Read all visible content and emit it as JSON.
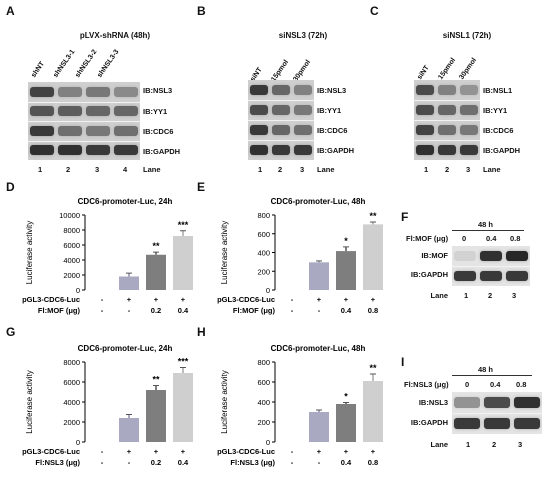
{
  "panel_letters": {
    "A": "A",
    "B": "B",
    "C": "C",
    "D": "D",
    "E": "E",
    "F": "F",
    "G": "G",
    "H": "H",
    "I": "I"
  },
  "blotA": {
    "title": "pLVX-shRNA (48h)",
    "columns": [
      "shNT",
      "shNSL3-1",
      "shNSL3-2",
      "shNSL3-3"
    ],
    "rows": [
      "IB:NSL3",
      "IB:YY1",
      "IB:CDC6",
      "IB:GAPDH"
    ],
    "lanes": [
      "1",
      "2",
      "3",
      "4"
    ],
    "lane_label": "Lane"
  },
  "blotB": {
    "title": "siNSL3 (72h)",
    "columns": [
      "siNT",
      "15pmol",
      "30pmol"
    ],
    "rows": [
      "IB:NSL3",
      "IB:YY1",
      "IB:CDC6",
      "IB:GAPDH"
    ],
    "lanes": [
      "1",
      "2",
      "3"
    ],
    "lane_label": "Lane"
  },
  "blotC": {
    "title": "siNSL1 (72h)",
    "columns": [
      "siNT",
      "15pmol",
      "30pmol"
    ],
    "rows": [
      "IB:NSL1",
      "IB:YY1",
      "IB:CDC6",
      "IB:GAPDH"
    ],
    "lanes": [
      "1",
      "2",
      "3"
    ],
    "lane_label": "Lane"
  },
  "blotF": {
    "time": "48 h",
    "dose_label": "Fl:MOF (μg)",
    "doses": [
      "0",
      "0.4",
      "0.8"
    ],
    "rows": [
      "IB:MOF",
      "IB:GAPDH"
    ],
    "lanes": [
      "1",
      "2",
      "3"
    ],
    "lane_label": "Lane"
  },
  "blotI": {
    "time": "48 h",
    "dose_label": "Fl:NSL3 (μg)",
    "doses": [
      "0",
      "0.4",
      "0.8"
    ],
    "rows": [
      "IB:NSL3",
      "IB:GAPDH"
    ],
    "lanes": [
      "1",
      "2",
      "3"
    ],
    "lane_label": "Lane"
  },
  "chart_data": [
    {
      "panel": "D",
      "type": "bar",
      "title": "CDC6-promoter-Luc, 24h",
      "ylabel": "Luciferase activity",
      "ylim": [
        0,
        10000
      ],
      "yticks": [
        0,
        2000,
        4000,
        6000,
        8000,
        10000
      ],
      "values": [
        0,
        1800,
        4700,
        7200
      ],
      "errors": [
        0,
        450,
        350,
        700
      ],
      "sig": [
        "",
        "",
        "**",
        "***"
      ],
      "colors": [
        "#ffffff",
        "#a9a9c1",
        "#7e7e7e",
        "#cfcfcf"
      ],
      "rows": [
        {
          "label": "pGL3-CDC6-Luc",
          "vals": [
            "-",
            "+",
            "+",
            "+"
          ]
        },
        {
          "label": "Fl:MOF (μg)",
          "vals": [
            "-",
            "-",
            "0.2",
            "0.4"
          ]
        }
      ]
    },
    {
      "panel": "E",
      "type": "bar",
      "title": "CDC6-promoter-Luc, 48h",
      "ylabel": "Luciferase activity",
      "ylim": [
        0,
        800
      ],
      "yticks": [
        0,
        200,
        400,
        600,
        800
      ],
      "values": [
        0,
        295,
        415,
        700
      ],
      "errors": [
        0,
        15,
        45,
        25
      ],
      "sig": [
        "",
        "",
        "*",
        "**"
      ],
      "colors": [
        "#ffffff",
        "#a9a9c1",
        "#7e7e7e",
        "#cfcfcf"
      ],
      "rows": [
        {
          "label": "pGL3-CDC6-Luc",
          "vals": [
            "-",
            "+",
            "+",
            "+"
          ]
        },
        {
          "label": "Fl:MOF (μg)",
          "vals": [
            "-",
            "-",
            "0.4",
            "0.8"
          ]
        }
      ]
    },
    {
      "panel": "G",
      "type": "bar",
      "title": "CDC6-promoter-Luc, 24h",
      "ylabel": "Luciferase activity",
      "ylim": [
        0,
        8000
      ],
      "yticks": [
        0,
        2000,
        4000,
        6000,
        8000
      ],
      "values": [
        0,
        2400,
        5200,
        6900
      ],
      "errors": [
        0,
        350,
        450,
        550
      ],
      "sig": [
        "",
        "",
        "**",
        "***"
      ],
      "colors": [
        "#ffffff",
        "#a9a9c1",
        "#7e7e7e",
        "#cfcfcf"
      ],
      "rows": [
        {
          "label": "pGL3-CDC6-Luc",
          "vals": [
            "-",
            "+",
            "+",
            "+"
          ]
        },
        {
          "label": "Fl:NSL3 (μg)",
          "vals": [
            "-",
            "-",
            "0.2",
            "0.4"
          ]
        }
      ]
    },
    {
      "panel": "H",
      "type": "bar",
      "title": "CDC6-promoter-Luc, 48h",
      "ylabel": "Luciferase activity",
      "ylim": [
        0,
        800
      ],
      "yticks": [
        0,
        200,
        400,
        600,
        800
      ],
      "values": [
        0,
        300,
        380,
        610
      ],
      "errors": [
        0,
        20,
        15,
        70
      ],
      "sig": [
        "",
        "",
        "*",
        "**"
      ],
      "colors": [
        "#ffffff",
        "#a9a9c1",
        "#7e7e7e",
        "#cfcfcf"
      ],
      "rows": [
        {
          "label": "pGL3-CDC6-Luc",
          "vals": [
            "-",
            "+",
            "+",
            "+"
          ]
        },
        {
          "label": "Fl:NSL3 (μg)",
          "vals": [
            "-",
            "-",
            "0.4",
            "0.8"
          ]
        }
      ]
    }
  ]
}
